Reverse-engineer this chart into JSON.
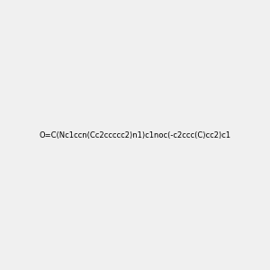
{
  "smiles": "O=C(Nc1ccn(Cc2ccccc2)n1)c1noc(-c2ccc(C)cc2)c1",
  "title": "",
  "background_color": "#f0f0f0",
  "img_size": [
    300,
    300
  ]
}
